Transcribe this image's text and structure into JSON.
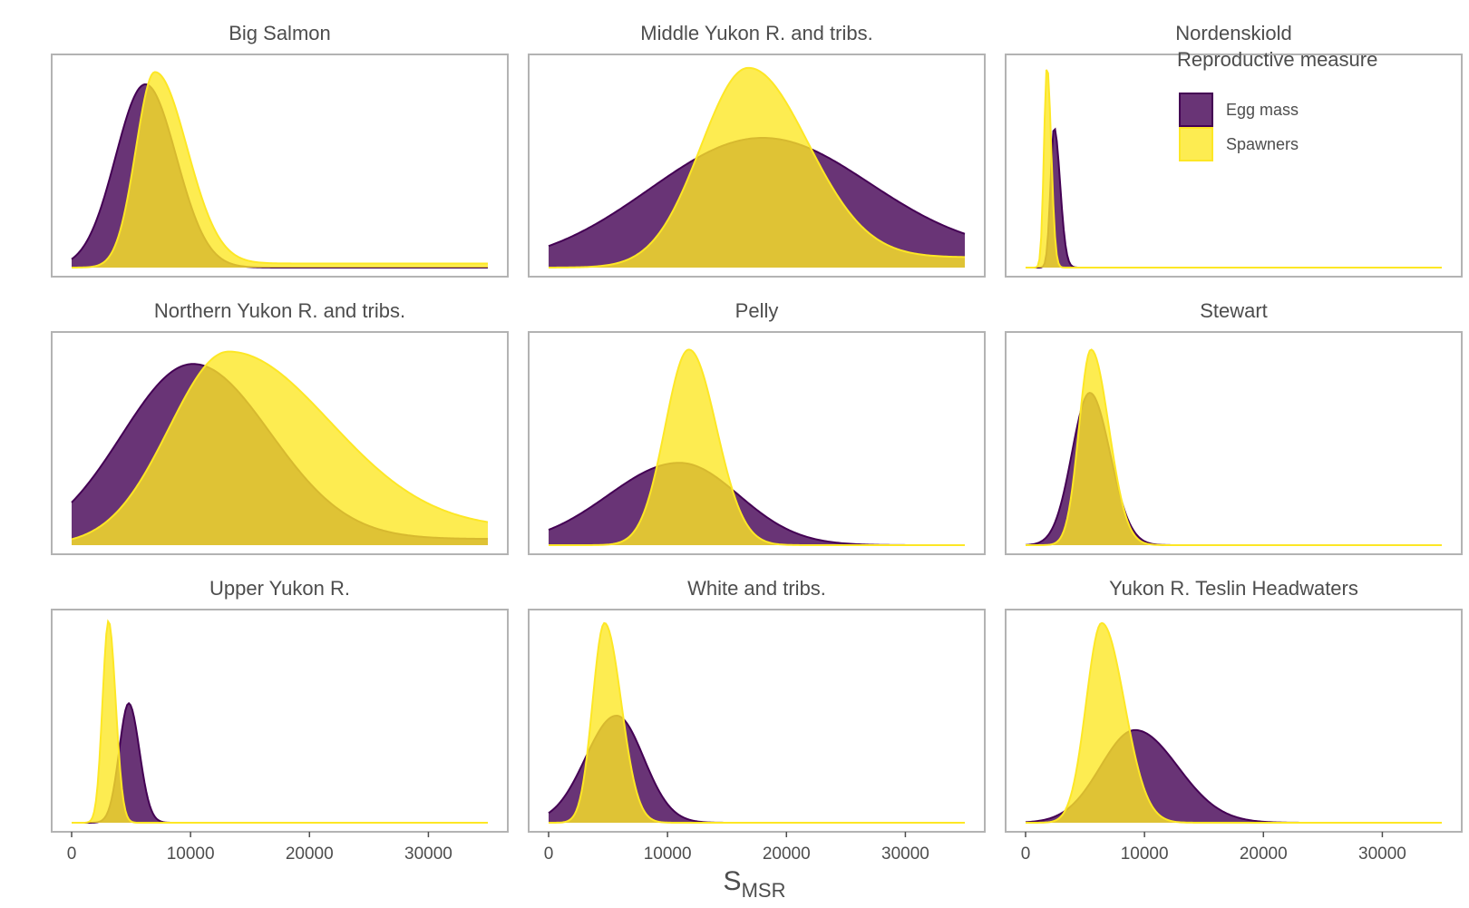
{
  "chart_data": {
    "type": "area",
    "xlabel": "S",
    "xlabel_subscript": "MSR",
    "xlim": [
      0,
      35000
    ],
    "x_ticks": [
      0,
      10000,
      20000,
      30000
    ],
    "x_tick_labels": [
      "0",
      "10000",
      "20000",
      "30000"
    ],
    "y_axis_shown": false,
    "grid": false,
    "legend": {
      "title": "Reproductive measure",
      "placement": "top-right",
      "entries": [
        {
          "name": "Egg mass",
          "color": "#440154"
        },
        {
          "name": "Spawners",
          "color": "#fde725"
        }
      ]
    },
    "fill_opacity": 0.8,
    "panels": [
      {
        "title": "Big Salmon",
        "series": [
          {
            "name": "Egg mass",
            "peak_x": 6200,
            "peak_density": 0.89,
            "sd_left": 2500,
            "sd_right": 2600,
            "tail_density_at_max": 0.0
          },
          {
            "name": "Spawners",
            "peak_x": 7000,
            "peak_density": 0.95,
            "sd_left": 1600,
            "sd_right": 2700,
            "tail_density_at_max": 0.02
          }
        ]
      },
      {
        "title": "Middle Yukon R. and tribs.",
        "series": [
          {
            "name": "Egg mass",
            "peak_x": 18000,
            "peak_density": 0.63,
            "sd_left": 9500,
            "sd_right": 9000,
            "tail_density_at_max": 0.07
          },
          {
            "name": "Spawners",
            "peak_x": 16800,
            "peak_density": 0.97,
            "sd_left": 4000,
            "sd_right": 5000,
            "tail_density_at_max": 0.05
          }
        ]
      },
      {
        "title": "Nordenskiold",
        "series": [
          {
            "name": "Egg mass",
            "peak_x": 2400,
            "peak_density": 0.68,
            "sd_left": 300,
            "sd_right": 500,
            "tail_density_at_max": 0.0
          },
          {
            "name": "Spawners",
            "peak_x": 1800,
            "peak_density": 0.98,
            "sd_left": 250,
            "sd_right": 350,
            "tail_density_at_max": 0.0
          }
        ]
      },
      {
        "title": "Northern Yukon R. and tribs.",
        "series": [
          {
            "name": "Egg mass",
            "peak_x": 10200,
            "peak_density": 0.88,
            "sd_left": 6000,
            "sd_right": 6500,
            "tail_density_at_max": 0.03
          },
          {
            "name": "Spawners",
            "peak_x": 13200,
            "peak_density": 0.94,
            "sd_left": 5000,
            "sd_right": 8500,
            "tail_density_at_max": 0.08
          }
        ]
      },
      {
        "title": "Pelly",
        "series": [
          {
            "name": "Egg mass",
            "peak_x": 11000,
            "peak_density": 0.4,
            "sd_left": 6000,
            "sd_right": 5000,
            "tail_density_at_max": 0.0
          },
          {
            "name": "Spawners",
            "peak_x": 11800,
            "peak_density": 0.95,
            "sd_left": 2000,
            "sd_right": 2300,
            "tail_density_at_max": 0.0
          }
        ]
      },
      {
        "title": "Stewart",
        "series": [
          {
            "name": "Egg mass",
            "peak_x": 5400,
            "peak_density": 0.74,
            "sd_left": 1500,
            "sd_right": 1700,
            "tail_density_at_max": 0.0
          },
          {
            "name": "Spawners",
            "peak_x": 5500,
            "peak_density": 0.95,
            "sd_left": 1000,
            "sd_right": 1500,
            "tail_density_at_max": 0.0
          }
        ]
      },
      {
        "title": "Upper Yukon R.",
        "series": [
          {
            "name": "Egg mass",
            "peak_x": 4800,
            "peak_density": 0.58,
            "sd_left": 800,
            "sd_right": 900,
            "tail_density_at_max": 0.0
          },
          {
            "name": "Spawners",
            "peak_x": 3100,
            "peak_density": 0.98,
            "sd_left": 500,
            "sd_right": 600,
            "tail_density_at_max": 0.0
          }
        ]
      },
      {
        "title": "White and tribs.",
        "series": [
          {
            "name": "Egg mass",
            "peak_x": 5700,
            "peak_density": 0.52,
            "sd_left": 2600,
            "sd_right": 2300,
            "tail_density_at_max": 0.0
          },
          {
            "name": "Spawners",
            "peak_x": 4700,
            "peak_density": 0.97,
            "sd_left": 1000,
            "sd_right": 1400,
            "tail_density_at_max": 0.0
          }
        ]
      },
      {
        "title": "Yukon R. Teslin Headwaters",
        "series": [
          {
            "name": "Egg mass",
            "peak_x": 9200,
            "peak_density": 0.45,
            "sd_left": 2900,
            "sd_right": 3600,
            "tail_density_at_max": 0.0
          },
          {
            "name": "Spawners",
            "peak_x": 6400,
            "peak_density": 0.97,
            "sd_left": 1300,
            "sd_right": 1900,
            "tail_density_at_max": 0.0
          }
        ]
      }
    ]
  }
}
